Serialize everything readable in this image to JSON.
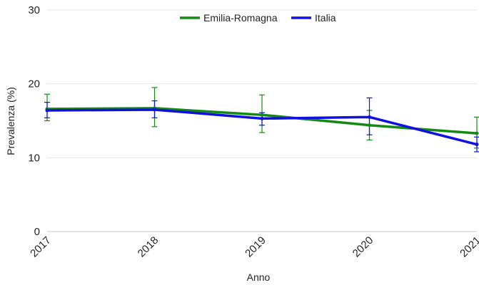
{
  "chart_data": {
    "type": "line",
    "title": "",
    "xlabel": "Anno",
    "ylabel": "Prevalenza (%)",
    "categories": [
      "2017",
      "2018",
      "2019",
      "2020",
      "2021"
    ],
    "ylim": [
      0,
      30
    ],
    "yticks": [
      "0",
      "10",
      "20",
      "30"
    ],
    "grid": true,
    "legend_position": "top",
    "series": [
      {
        "name": "Emilia-Romagna",
        "color": "#138a13",
        "values": [
          16.6,
          16.7,
          15.8,
          14.4,
          13.3
        ],
        "error_low": [
          15.0,
          14.2,
          13.4,
          12.4,
          11.3
        ],
        "error_high": [
          18.6,
          19.5,
          18.5,
          16.4,
          15.5
        ]
      },
      {
        "name": "Italia",
        "color": "#1010e0",
        "values": [
          16.4,
          16.5,
          15.3,
          15.5,
          11.8
        ],
        "error_low": [
          15.4,
          15.4,
          14.4,
          13.1,
          10.8
        ],
        "error_high": [
          17.5,
          17.7,
          16.1,
          18.1,
          12.8
        ]
      }
    ]
  }
}
